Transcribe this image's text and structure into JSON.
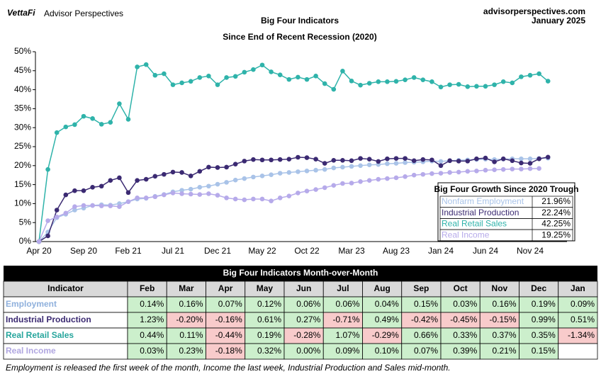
{
  "header": {
    "brand": "VettaFi",
    "brand_sub": "Advisor Perspectives",
    "site": "advisorperspectives.com",
    "date": "January 2025"
  },
  "chart_data": {
    "type": "line",
    "title": "Big Four Indicators",
    "subtitle": "Since  End of Recent Recession (2020)",
    "categories": [
      "Apr 20",
      null,
      null,
      null,
      null,
      "Sep 20",
      null,
      null,
      null,
      null,
      "Feb 21",
      null,
      null,
      null,
      null,
      "Jul 21",
      null,
      null,
      null,
      null,
      "Dec 21",
      null,
      null,
      null,
      null,
      "May 22",
      null,
      null,
      null,
      null,
      "Oct 22",
      null,
      null,
      null,
      null,
      "Mar 23",
      null,
      null,
      null,
      null,
      "Aug 23",
      null,
      null,
      null,
      null,
      "Jan 24",
      null,
      null,
      null,
      null,
      "Jun 24",
      null,
      null,
      null,
      null,
      "Nov 24",
      null,
      null
    ],
    "ylim": [
      0,
      50
    ],
    "yticks": [
      {
        "value": 0,
        "label": "0%"
      },
      {
        "value": 5,
        "label": "5%"
      },
      {
        "value": 10,
        "label": "10%"
      },
      {
        "value": 15,
        "label": "15%"
      },
      {
        "value": 20,
        "label": "20%"
      },
      {
        "value": 25,
        "label": "25%"
      },
      {
        "value": 30,
        "label": "30%"
      },
      {
        "value": 35,
        "label": "35%"
      },
      {
        "value": 40,
        "label": "40%"
      },
      {
        "value": 45,
        "label": "45%"
      },
      {
        "value": 50,
        "label": "50%"
      }
    ],
    "grid": false,
    "series": [
      {
        "name": "Nonfarm Employment",
        "color": "#a9c3e8",
        "values": [
          0,
          2.5,
          6.3,
          7.2,
          8.3,
          8.8,
          9.5,
          9.7,
          9.6,
          10.0,
          10.5,
          11.2,
          11.4,
          11.9,
          12.4,
          13.1,
          13.5,
          13.8,
          14.3,
          14.6,
          15.1,
          15.6,
          16.2,
          16.6,
          17.0,
          17.3,
          17.6,
          18.0,
          18.2,
          18.4,
          18.6,
          18.8,
          19.0,
          19.4,
          19.6,
          19.8,
          20.0,
          20.2,
          20.3,
          20.5,
          20.6,
          20.8,
          20.9,
          21.0,
          21.2,
          21.1,
          21.3,
          21.4,
          21.5,
          21.6,
          21.7,
          21.6,
          21.7,
          21.8,
          21.8,
          21.8,
          21.9,
          21.96
        ]
      },
      {
        "name": "Industrial Production",
        "color": "#3b2a72",
        "values": [
          0,
          1.5,
          8.3,
          12.3,
          13.4,
          13.4,
          14.3,
          14.6,
          16.1,
          16.8,
          12.9,
          16.1,
          16.4,
          17.2,
          17.7,
          18.3,
          18.2,
          17.3,
          18.5,
          19.6,
          19.5,
          19.6,
          20.4,
          21.2,
          21.6,
          21.5,
          21.5,
          21.6,
          21.7,
          22.2,
          22.1,
          21.7,
          20.6,
          21.4,
          21.4,
          21.3,
          21.9,
          21.7,
          21.1,
          21.8,
          21.9,
          21.9,
          21.3,
          21.6,
          21.5,
          20.0,
          21.3,
          21.2,
          21.2,
          21.8,
          22.0,
          21.0,
          21.8,
          21.3,
          20.7,
          20.6,
          21.8,
          22.24
        ]
      },
      {
        "name": "Real Retail Sales",
        "color": "#2fb3aa",
        "values": [
          0,
          19,
          28.7,
          30.2,
          30.8,
          33,
          32.4,
          30.9,
          31.4,
          36.3,
          32.2,
          46,
          46.6,
          43.8,
          44.2,
          41.3,
          41.8,
          42.2,
          43.2,
          43.6,
          41.3,
          43.2,
          43.5,
          44.6,
          45.3,
          46.5,
          44.7,
          43.9,
          42.7,
          43.3,
          42.7,
          43.6,
          41.6,
          40.1,
          44.9,
          42.3,
          41.2,
          41.7,
          42.1,
          42.1,
          42.2,
          42.6,
          43.2,
          42.6,
          42.1,
          40.7,
          41.3,
          41.4,
          40.8,
          40.9,
          40.9,
          41.3,
          42.1,
          41.8,
          43.4,
          43.8,
          44.2,
          42.25
        ]
      },
      {
        "name": "Real Income",
        "color": "#b6aaea",
        "values": [
          0,
          5.5,
          6.5,
          7.5,
          9.2,
          9.5,
          9.5,
          9.4,
          9.4,
          9.2,
          10.5,
          11.5,
          11.5,
          11.8,
          12.3,
          12.8,
          12.6,
          12.5,
          12.4,
          12.6,
          12.2,
          11.5,
          11.2,
          11.0,
          11.2,
          11.2,
          10.7,
          11.5,
          12.0,
          12.8,
          13.3,
          13.7,
          14.2,
          14.8,
          15.3,
          15.4,
          15.8,
          16.1,
          16.4,
          16.6,
          16.8,
          17.1,
          17.5,
          17.7,
          17.9,
          18.0,
          18.2,
          18.3,
          18.5,
          18.6,
          18.8,
          18.9,
          19.0,
          19.1,
          19.1,
          19.2,
          19.25,
          null
        ]
      }
    ],
    "legend_table": {
      "title": "Big Four Growth  Since 2020 Trough",
      "values": [
        "21.96%",
        "22.24%",
        "42.25%",
        "19.25%"
      ]
    }
  },
  "table": {
    "title": "Big Four Indicators Month-over-Month",
    "header": [
      "Indicator",
      "Feb",
      "Mar",
      "Apr",
      "May",
      "Jun",
      "Jul",
      "Aug",
      "Sep",
      "Oct",
      "Nov",
      "Dec",
      "Jan"
    ],
    "rows": [
      {
        "name": "Employment",
        "color": "#8fb0dc",
        "cells": [
          "0.14%",
          "0.16%",
          "0.07%",
          "0.12%",
          "0.06%",
          "0.06%",
          "0.04%",
          "0.15%",
          "0.03%",
          "0.16%",
          "0.19%",
          "0.09%"
        ]
      },
      {
        "name": "Industrial Production",
        "color": "#3b2a72",
        "cells": [
          "1.23%",
          "-0.20%",
          "-0.16%",
          "0.61%",
          "0.27%",
          "-0.71%",
          "0.49%",
          "-0.42%",
          "-0.45%",
          "-0.15%",
          "0.99%",
          "0.51%"
        ]
      },
      {
        "name": "Real Retail Sales",
        "color": "#26a59c",
        "cells": [
          "0.44%",
          "0.11%",
          "-0.44%",
          "0.19%",
          "-0.28%",
          "1.07%",
          "-0.29%",
          "0.66%",
          "0.33%",
          "0.37%",
          "0.35%",
          "-1.34%"
        ]
      },
      {
        "name": "Real Income",
        "color": "#b0a6e0",
        "cells": [
          "0.03%",
          "0.23%",
          "-0.18%",
          "0.32%",
          "0.00%",
          "0.09%",
          "0.10%",
          "0.07%",
          "0.39%",
          "0.21%",
          "0.15%",
          null
        ]
      }
    ]
  },
  "footnote": "Employment is released the first week of the month, Income the last week, Industrial Production and Sales mid-month."
}
